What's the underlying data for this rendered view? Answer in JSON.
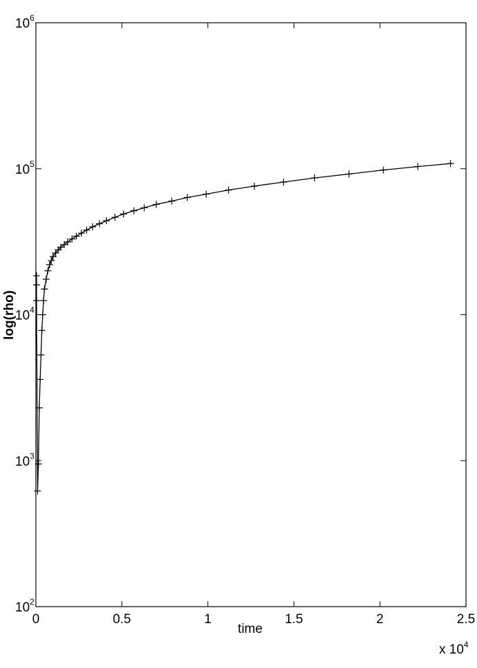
{
  "chart_data": {
    "type": "line",
    "xlabel": "time",
    "ylabel": "log(rho)",
    "yscale": "log",
    "x_multiplier": {
      "base": "x 10",
      "exponent": "4"
    },
    "xlim": [
      0,
      25000
    ],
    "xticks": [
      {
        "value": 0,
        "label": "0"
      },
      {
        "value": 5000,
        "label": "0.5"
      },
      {
        "value": 10000,
        "label": "1"
      },
      {
        "value": 15000,
        "label": "1.5"
      },
      {
        "value": 20000,
        "label": "2"
      },
      {
        "value": 25000,
        "label": "2.5"
      }
    ],
    "ylim": [
      100,
      1000000
    ],
    "yticks": [
      {
        "value": 100,
        "label": "10",
        "exponent": "2"
      },
      {
        "value": 1000,
        "label": "10",
        "exponent": "3"
      },
      {
        "value": 10000,
        "label": "10",
        "exponent": "4"
      },
      {
        "value": 100000,
        "label": "10",
        "exponent": "5"
      },
      {
        "value": 1000000,
        "label": "10",
        "exponent": "6"
      }
    ],
    "x": [
      40,
      40,
      40,
      100,
      150,
      200,
      250,
      300,
      350,
      400,
      450,
      500,
      600,
      700,
      800,
      900,
      1000,
      1150,
      1300,
      1450,
      1650,
      1850,
      2100,
      2350,
      2650,
      2950,
      3300,
      3700,
      4100,
      4600,
      5100,
      5700,
      6300,
      7000,
      7900,
      8800,
      9900,
      11200,
      12700,
      14400,
      16200,
      18200,
      20200,
      22200,
      24100
    ],
    "series": [
      {
        "color": "#000000",
        "marker": "+",
        "values": [
          18500,
          16000,
          12500,
          620,
          950,
          2300,
          3600,
          5300,
          7800,
          10000,
          12500,
          15000,
          17500,
          20000,
          22000,
          23500,
          25000,
          26500,
          27800,
          29000,
          30200,
          31500,
          33000,
          34500,
          36200,
          38000,
          40000,
          42000,
          44000,
          46500,
          49000,
          51500,
          54000,
          57000,
          60000,
          63500,
          67000,
          71500,
          76000,
          81000,
          86500,
          92000,
          98000,
          103500,
          108500
        ]
      }
    ]
  }
}
